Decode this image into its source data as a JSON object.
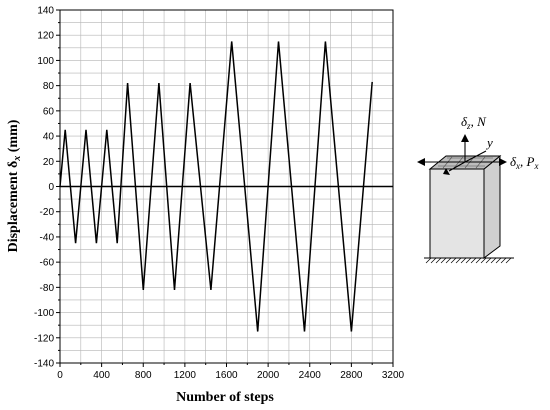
{
  "chart_data": {
    "type": "line",
    "xlabel": "Number of steps",
    "ylabel_main": "Displacement δ",
    "ylabel_sub": "x",
    "ylabel_unit": " (mm)",
    "xlim": [
      0,
      3200
    ],
    "ylim": [
      -140,
      140
    ],
    "x_ticks": [
      "0",
      "400",
      "800",
      "1200",
      "1600",
      "2000",
      "2400",
      "2800",
      "3200"
    ],
    "y_ticks": [
      "-140",
      "-120",
      "-100",
      "-80",
      "-60",
      "-40",
      "-20",
      "0",
      "20",
      "40",
      "60",
      "80",
      "100",
      "120",
      "140"
    ],
    "grid": true,
    "series": [
      {
        "color": "#000000",
        "x": [
          0,
          50,
          150,
          250,
          350,
          450,
          550,
          650,
          800,
          950,
          1100,
          1250,
          1450,
          1650,
          1900,
          2100,
          2350,
          2550,
          2800,
          3000
        ],
        "y": [
          0,
          45,
          -45,
          45,
          -45,
          45,
          -45,
          82,
          -82,
          82,
          -82,
          82,
          -82,
          115,
          -115,
          115,
          -115,
          115,
          -115,
          83
        ]
      }
    ],
    "zero_line": true
  },
  "inset": {
    "label_dz": "δ",
    "label_dz_sub": "z",
    "label_dz_suffix": ", N",
    "label_y": "y",
    "label_dx": "δ",
    "label_dx_sub": "x",
    "label_dx_suffix": ", P",
    "label_px_sub": "x"
  }
}
